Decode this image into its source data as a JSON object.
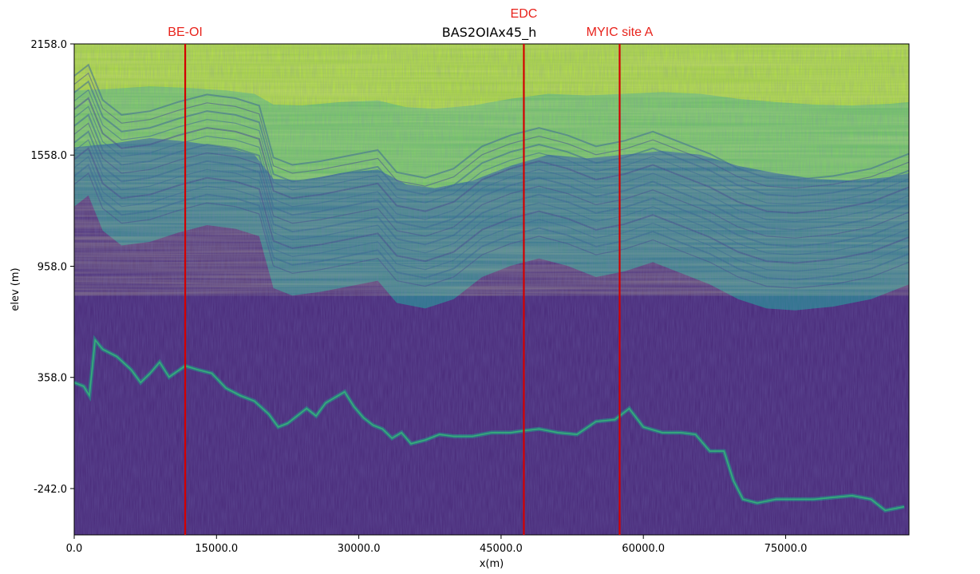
{
  "chart_data": {
    "type": "heatmap",
    "title": "BAS2OIAx45_h",
    "xlabel": "x(m)",
    "ylabel": "elev (m)",
    "xlim": [
      0,
      88000
    ],
    "ylim": [
      -492,
      2158
    ],
    "x_ticks": [
      {
        "value": 0,
        "label": "0.0"
      },
      {
        "value": 15000,
        "label": "15000.0"
      },
      {
        "value": 30000,
        "label": "30000.0"
      },
      {
        "value": 45000,
        "label": "45000.0"
      },
      {
        "value": 60000,
        "label": "60000.0"
      },
      {
        "value": 75000,
        "label": "75000.0"
      }
    ],
    "y_ticks": [
      {
        "value": 2158,
        "label": "2158.0"
      },
      {
        "value": 1558,
        "label": "1558.0"
      },
      {
        "value": 958,
        "label": "958.0"
      },
      {
        "value": 358,
        "label": "358.0"
      },
      {
        "value": -242,
        "label": "-242.0"
      }
    ],
    "colormap": [
      "#440154",
      "#482878",
      "#3e4a89",
      "#31688e",
      "#26828e",
      "#1f9e89",
      "#35b779",
      "#6ece58",
      "#b5de2b",
      "#fde725"
    ],
    "markers": [
      {
        "name": "BE-OI",
        "x": 11700,
        "color": "#e8221b",
        "line_color": "#d40000"
      },
      {
        "name": "EDC",
        "x": 47400,
        "color": "#e8221b",
        "line_color": "#d40000"
      },
      {
        "name": "MYIC site A",
        "x": 57500,
        "color": "#e8221b",
        "line_color": "#d40000"
      }
    ],
    "bed_profile": [
      {
        "x": 0,
        "y": 330
      },
      {
        "x": 1000,
        "y": 310
      },
      {
        "x": 1600,
        "y": 260
      },
      {
        "x": 2200,
        "y": 560
      },
      {
        "x": 3000,
        "y": 510
      },
      {
        "x": 4500,
        "y": 470
      },
      {
        "x": 6000,
        "y": 400
      },
      {
        "x": 7000,
        "y": 330
      },
      {
        "x": 8000,
        "y": 380
      },
      {
        "x": 9000,
        "y": 440
      },
      {
        "x": 10000,
        "y": 360
      },
      {
        "x": 11700,
        "y": 420
      },
      {
        "x": 13000,
        "y": 400
      },
      {
        "x": 14500,
        "y": 380
      },
      {
        "x": 16000,
        "y": 300
      },
      {
        "x": 17500,
        "y": 260
      },
      {
        "x": 19000,
        "y": 230
      },
      {
        "x": 20500,
        "y": 160
      },
      {
        "x": 21500,
        "y": 90
      },
      {
        "x": 22500,
        "y": 110
      },
      {
        "x": 23500,
        "y": 150
      },
      {
        "x": 24500,
        "y": 190
      },
      {
        "x": 25500,
        "y": 150
      },
      {
        "x": 26500,
        "y": 220
      },
      {
        "x": 27500,
        "y": 250
      },
      {
        "x": 28500,
        "y": 280
      },
      {
        "x": 29500,
        "y": 200
      },
      {
        "x": 30500,
        "y": 140
      },
      {
        "x": 31500,
        "y": 100
      },
      {
        "x": 32500,
        "y": 80
      },
      {
        "x": 33500,
        "y": 30
      },
      {
        "x": 34500,
        "y": 60
      },
      {
        "x": 35500,
        "y": 0
      },
      {
        "x": 37000,
        "y": 20
      },
      {
        "x": 38500,
        "y": 50
      },
      {
        "x": 40000,
        "y": 40
      },
      {
        "x": 42000,
        "y": 40
      },
      {
        "x": 44000,
        "y": 60
      },
      {
        "x": 46000,
        "y": 60
      },
      {
        "x": 47400,
        "y": 70
      },
      {
        "x": 49000,
        "y": 80
      },
      {
        "x": 51000,
        "y": 60
      },
      {
        "x": 53000,
        "y": 50
      },
      {
        "x": 55000,
        "y": 120
      },
      {
        "x": 57000,
        "y": 130
      },
      {
        "x": 58500,
        "y": 190
      },
      {
        "x": 60000,
        "y": 90
      },
      {
        "x": 62000,
        "y": 60
      },
      {
        "x": 64000,
        "y": 60
      },
      {
        "x": 65500,
        "y": 50
      },
      {
        "x": 67000,
        "y": -40
      },
      {
        "x": 68500,
        "y": -40
      },
      {
        "x": 69500,
        "y": -200
      },
      {
        "x": 70500,
        "y": -300
      },
      {
        "x": 72000,
        "y": -320
      },
      {
        "x": 74000,
        "y": -300
      },
      {
        "x": 76000,
        "y": -300
      },
      {
        "x": 78000,
        "y": -300
      },
      {
        "x": 80000,
        "y": -290
      },
      {
        "x": 82000,
        "y": -280
      },
      {
        "x": 84000,
        "y": -300
      },
      {
        "x": 85500,
        "y": -360
      },
      {
        "x": 87500,
        "y": -340
      }
    ],
    "layer_boundary_profile": [
      {
        "x": 0,
        "y": 1280
      },
      {
        "x": 1500,
        "y": 1340
      },
      {
        "x": 3000,
        "y": 1150
      },
      {
        "x": 5000,
        "y": 1070
      },
      {
        "x": 8000,
        "y": 1090
      },
      {
        "x": 11000,
        "y": 1140
      },
      {
        "x": 14000,
        "y": 1180
      },
      {
        "x": 17000,
        "y": 1160
      },
      {
        "x": 19500,
        "y": 1120
      },
      {
        "x": 21000,
        "y": 840
      },
      {
        "x": 23000,
        "y": 800
      },
      {
        "x": 26000,
        "y": 820
      },
      {
        "x": 29000,
        "y": 850
      },
      {
        "x": 32000,
        "y": 880
      },
      {
        "x": 34000,
        "y": 760
      },
      {
        "x": 37000,
        "y": 730
      },
      {
        "x": 40000,
        "y": 780
      },
      {
        "x": 43000,
        "y": 900
      },
      {
        "x": 46000,
        "y": 960
      },
      {
        "x": 49000,
        "y": 1000
      },
      {
        "x": 52000,
        "y": 960
      },
      {
        "x": 55000,
        "y": 900
      },
      {
        "x": 58000,
        "y": 930
      },
      {
        "x": 61000,
        "y": 980
      },
      {
        "x": 64000,
        "y": 920
      },
      {
        "x": 67000,
        "y": 860
      },
      {
        "x": 70000,
        "y": 780
      },
      {
        "x": 73000,
        "y": 730
      },
      {
        "x": 76000,
        "y": 720
      },
      {
        "x": 80000,
        "y": 740
      },
      {
        "x": 84000,
        "y": 780
      },
      {
        "x": 88000,
        "y": 860
      }
    ],
    "bright_top_profile": [
      {
        "x": 0,
        "y": 1600
      },
      {
        "x": 4000,
        "y": 1620
      },
      {
        "x": 8000,
        "y": 1650
      },
      {
        "x": 12000,
        "y": 1630
      },
      {
        "x": 16000,
        "y": 1600
      },
      {
        "x": 19000,
        "y": 1560
      },
      {
        "x": 21000,
        "y": 1430
      },
      {
        "x": 24000,
        "y": 1420
      },
      {
        "x": 28000,
        "y": 1460
      },
      {
        "x": 32000,
        "y": 1480
      },
      {
        "x": 35000,
        "y": 1400
      },
      {
        "x": 38000,
        "y": 1380
      },
      {
        "x": 42000,
        "y": 1420
      },
      {
        "x": 46000,
        "y": 1500
      },
      {
        "x": 50000,
        "y": 1560
      },
      {
        "x": 54000,
        "y": 1540
      },
      {
        "x": 58000,
        "y": 1560
      },
      {
        "x": 62000,
        "y": 1580
      },
      {
        "x": 66000,
        "y": 1560
      },
      {
        "x": 70000,
        "y": 1500
      },
      {
        "x": 74000,
        "y": 1460
      },
      {
        "x": 78000,
        "y": 1430
      },
      {
        "x": 82000,
        "y": 1420
      },
      {
        "x": 86000,
        "y": 1440
      },
      {
        "x": 88000,
        "y": 1460
      }
    ]
  }
}
